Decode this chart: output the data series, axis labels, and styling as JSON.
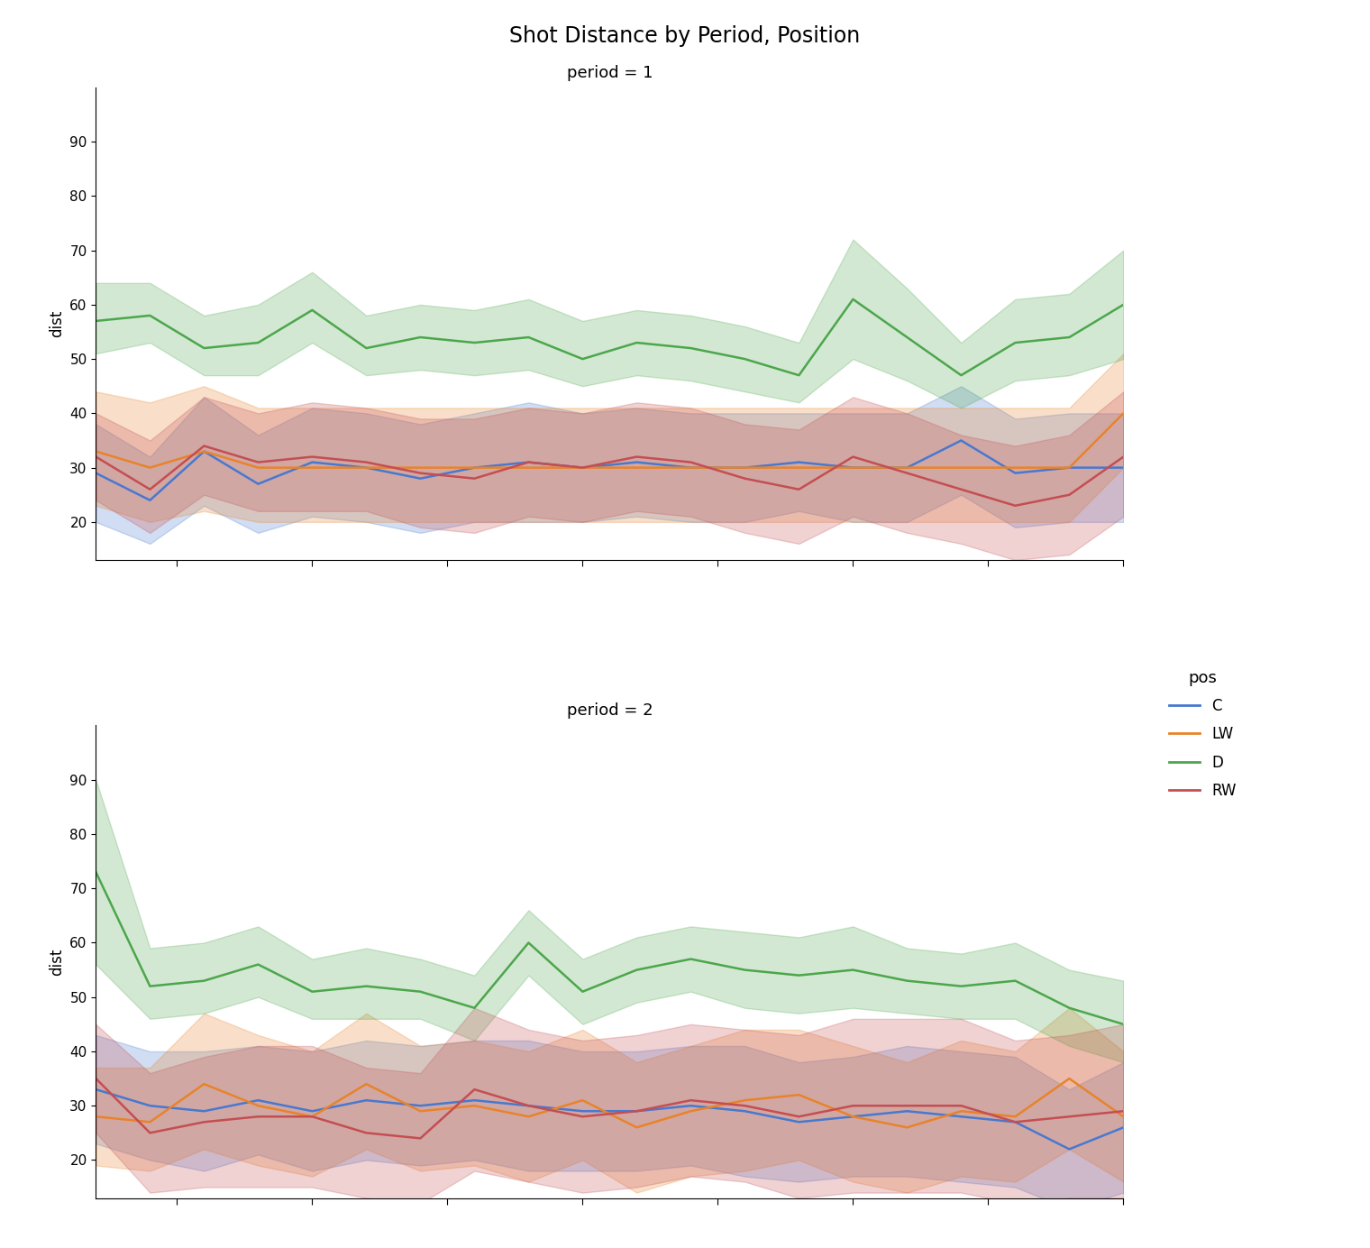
{
  "title": "Shot Distance by Period, Position",
  "positions": [
    "C",
    "LW",
    "D",
    "RW"
  ],
  "colors": {
    "C": "#4878cf",
    "LW": "#e8832a",
    "D": "#4ca64c",
    "RW": "#c44e52"
  },
  "x": [
    1,
    2,
    3,
    4,
    5,
    6,
    7,
    8,
    9,
    10,
    11,
    12,
    13,
    14,
    15,
    16,
    17,
    18,
    19,
    20
  ],
  "period1": {
    "C": {
      "mean": [
        29,
        24,
        33,
        27,
        31,
        30,
        28,
        30,
        31,
        30,
        31,
        30,
        30,
        31,
        30,
        30,
        35,
        29,
        30,
        30
      ],
      "lower": [
        20,
        16,
        23,
        18,
        21,
        20,
        18,
        20,
        20,
        20,
        21,
        20,
        20,
        22,
        20,
        20,
        25,
        19,
        20,
        20
      ],
      "upper": [
        38,
        32,
        43,
        36,
        41,
        40,
        38,
        40,
        42,
        40,
        41,
        40,
        40,
        40,
        40,
        40,
        45,
        39,
        40,
        40
      ]
    },
    "LW": {
      "mean": [
        33,
        30,
        33,
        30,
        30,
        30,
        30,
        30,
        30,
        30,
        30,
        30,
        30,
        30,
        30,
        30,
        30,
        30,
        30,
        40
      ],
      "lower": [
        23,
        20,
        22,
        20,
        20,
        20,
        20,
        20,
        20,
        20,
        20,
        20,
        20,
        20,
        20,
        20,
        20,
        20,
        20,
        30
      ],
      "upper": [
        44,
        42,
        45,
        41,
        41,
        41,
        41,
        41,
        41,
        41,
        41,
        41,
        41,
        41,
        41,
        41,
        41,
        41,
        41,
        51
      ]
    },
    "D": {
      "mean": [
        57,
        58,
        52,
        53,
        59,
        52,
        54,
        53,
        54,
        50,
        53,
        52,
        50,
        47,
        61,
        54,
        47,
        53,
        54,
        60
      ],
      "lower": [
        51,
        53,
        47,
        47,
        53,
        47,
        48,
        47,
        48,
        45,
        47,
        46,
        44,
        42,
        50,
        46,
        41,
        46,
        47,
        50
      ],
      "upper": [
        64,
        64,
        58,
        60,
        66,
        58,
        60,
        59,
        61,
        57,
        59,
        58,
        56,
        53,
        72,
        63,
        53,
        61,
        62,
        70
      ]
    },
    "RW": {
      "mean": [
        32,
        26,
        34,
        31,
        32,
        31,
        29,
        28,
        31,
        30,
        32,
        31,
        28,
        26,
        32,
        29,
        26,
        23,
        25,
        32
      ],
      "lower": [
        24,
        18,
        25,
        22,
        22,
        22,
        19,
        18,
        21,
        20,
        22,
        21,
        18,
        16,
        21,
        18,
        16,
        13,
        14,
        21
      ],
      "upper": [
        40,
        35,
        43,
        40,
        42,
        41,
        39,
        39,
        41,
        40,
        42,
        41,
        38,
        37,
        43,
        40,
        36,
        34,
        36,
        44
      ]
    }
  },
  "period2": {
    "C": {
      "mean": [
        33,
        30,
        29,
        31,
        29,
        31,
        30,
        31,
        30,
        29,
        29,
        30,
        29,
        27,
        28,
        29,
        28,
        27,
        22,
        26
      ],
      "lower": [
        23,
        20,
        18,
        21,
        18,
        20,
        19,
        20,
        18,
        18,
        18,
        19,
        17,
        16,
        17,
        17,
        16,
        15,
        11,
        14
      ],
      "upper": [
        43,
        40,
        40,
        41,
        40,
        42,
        41,
        42,
        42,
        40,
        40,
        41,
        41,
        38,
        39,
        41,
        40,
        39,
        33,
        38
      ]
    },
    "LW": {
      "mean": [
        28,
        27,
        34,
        30,
        28,
        34,
        29,
        30,
        28,
        31,
        26,
        29,
        31,
        32,
        28,
        26,
        29,
        28,
        35,
        28
      ],
      "lower": [
        19,
        18,
        22,
        19,
        17,
        22,
        18,
        19,
        16,
        20,
        14,
        17,
        18,
        20,
        16,
        14,
        17,
        16,
        22,
        16
      ],
      "upper": [
        37,
        37,
        47,
        43,
        40,
        47,
        41,
        42,
        40,
        44,
        38,
        41,
        44,
        44,
        41,
        38,
        42,
        40,
        48,
        40
      ]
    },
    "D": {
      "mean": [
        73,
        52,
        53,
        56,
        51,
        52,
        51,
        48,
        60,
        51,
        55,
        57,
        55,
        54,
        55,
        53,
        52,
        53,
        48,
        45
      ],
      "lower": [
        56,
        46,
        47,
        50,
        46,
        46,
        46,
        42,
        54,
        45,
        49,
        51,
        48,
        47,
        48,
        47,
        46,
        46,
        41,
        38
      ],
      "upper": [
        90,
        59,
        60,
        63,
        57,
        59,
        57,
        54,
        66,
        57,
        61,
        63,
        62,
        61,
        63,
        59,
        58,
        60,
        55,
        53
      ]
    },
    "RW": {
      "mean": [
        35,
        25,
        27,
        28,
        28,
        25,
        24,
        33,
        30,
        28,
        29,
        31,
        30,
        28,
        30,
        30,
        30,
        27,
        28,
        29
      ],
      "lower": [
        25,
        14,
        15,
        15,
        15,
        13,
        12,
        18,
        16,
        14,
        15,
        17,
        16,
        13,
        14,
        14,
        14,
        12,
        13,
        13
      ],
      "upper": [
        45,
        36,
        39,
        41,
        41,
        37,
        36,
        48,
        44,
        42,
        43,
        45,
        44,
        43,
        46,
        46,
        46,
        42,
        43,
        45
      ]
    }
  },
  "ylabel": "dist",
  "ylim": [
    13,
    100
  ],
  "yticks": [
    20,
    30,
    40,
    50,
    60,
    70,
    80,
    90
  ],
  "alpha_fill": 0.25,
  "background_color": "#ffffff",
  "period_labels": [
    "period = 1",
    "period = 2"
  ]
}
